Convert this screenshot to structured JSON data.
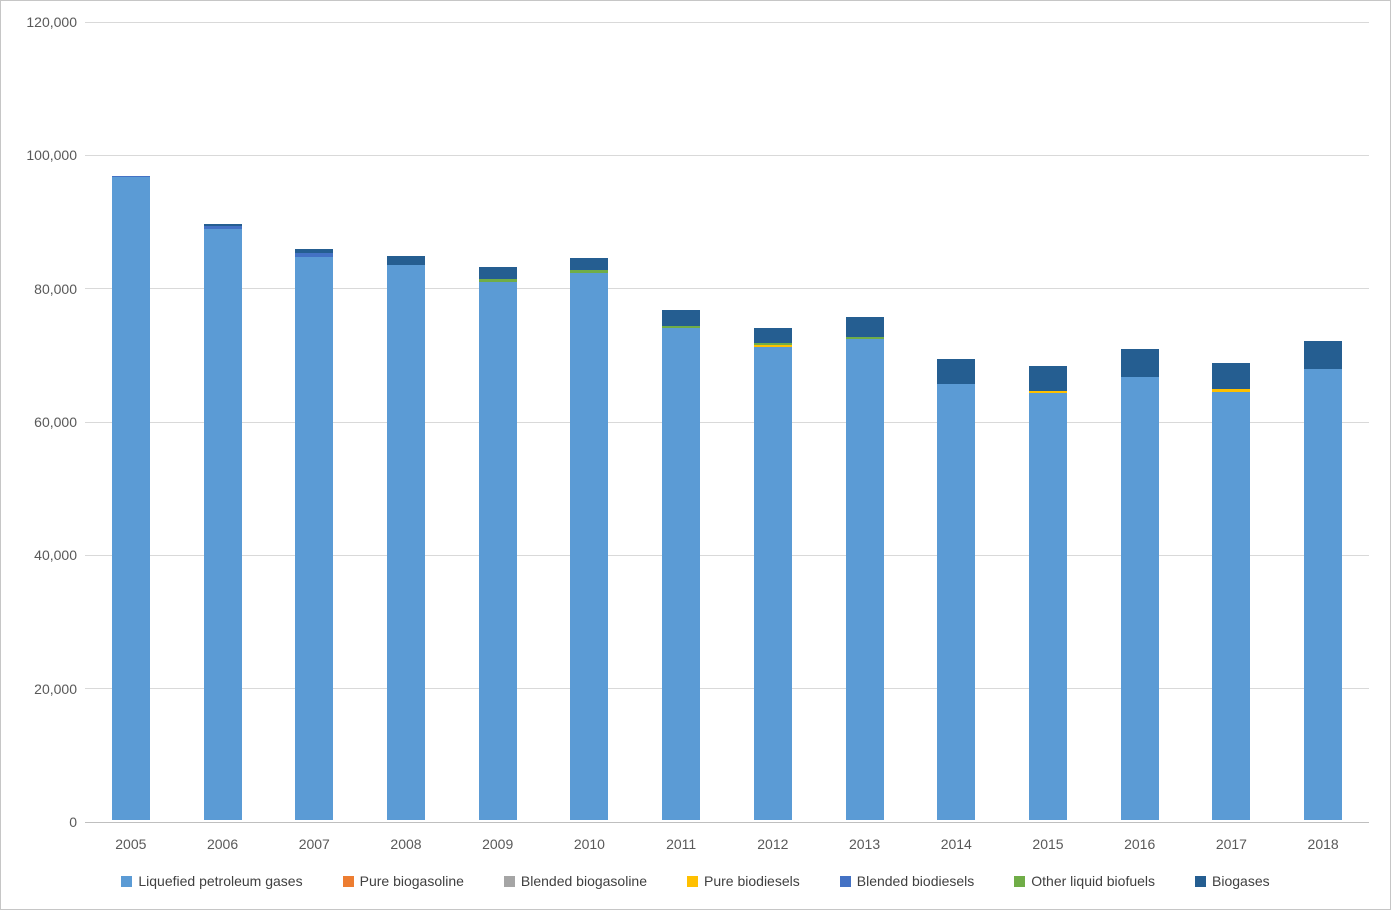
{
  "chart_data": {
    "type": "bar",
    "stacked": true,
    "title": "",
    "xlabel": "",
    "ylabel": "",
    "categories": [
      "2005",
      "2006",
      "2007",
      "2008",
      "2009",
      "2010",
      "2011",
      "2012",
      "2013",
      "2014",
      "2015",
      "2016",
      "2017",
      "2018"
    ],
    "series": [
      {
        "name": "Liquefied petroleum gases",
        "color": "#5B9BD5",
        "values": [
          96400,
          88600,
          84400,
          83300,
          80700,
          82100,
          73800,
          71000,
          72100,
          65400,
          64100,
          66400,
          64200,
          67600
        ]
      },
      {
        "name": "Pure biogasoline",
        "color": "#ED7D31",
        "values": [
          0,
          0,
          0,
          0,
          0,
          0,
          0,
          0,
          0,
          0,
          0,
          0,
          0,
          0
        ]
      },
      {
        "name": "Blended biogasoline",
        "color": "#A5A5A5",
        "values": [
          0,
          0,
          0,
          0,
          0,
          0,
          0,
          0,
          0,
          0,
          0,
          0,
          0,
          0
        ]
      },
      {
        "name": "Pure biodiesels",
        "color": "#FFC000",
        "values": [
          0,
          0,
          0,
          0,
          0,
          0,
          0,
          250,
          0,
          0,
          300,
          0,
          450,
          0
        ]
      },
      {
        "name": "Blended biodiesels",
        "color": "#4472C4",
        "values": [
          250,
          550,
          600,
          0,
          0,
          0,
          0,
          0,
          0,
          0,
          0,
          0,
          0,
          0
        ]
      },
      {
        "name": "Other liquid biofuels",
        "color": "#70AD47",
        "values": [
          0,
          0,
          0,
          0,
          450,
          450,
          300,
          250,
          300,
          0,
          0,
          0,
          0,
          0
        ]
      },
      {
        "name": "Biogases",
        "color": "#255E91",
        "values": [
          0,
          250,
          600,
          1350,
          1800,
          1800,
          2400,
          2300,
          3100,
          3750,
          3700,
          4200,
          3900,
          4300
        ]
      }
    ],
    "ylim": [
      0,
      120000
    ],
    "ytick_interval": 20000,
    "ytick_labels": [
      "0",
      "20,000",
      "40,000",
      "60,000",
      "80,000",
      "100,000",
      "120,000"
    ],
    "grid": true,
    "legend_position": "bottom"
  },
  "layout_colors": {
    "gridline": "#d9d9d9",
    "axis_line": "#bfbfbf",
    "axis_text": "#595959",
    "legend_text": "#404040"
  }
}
